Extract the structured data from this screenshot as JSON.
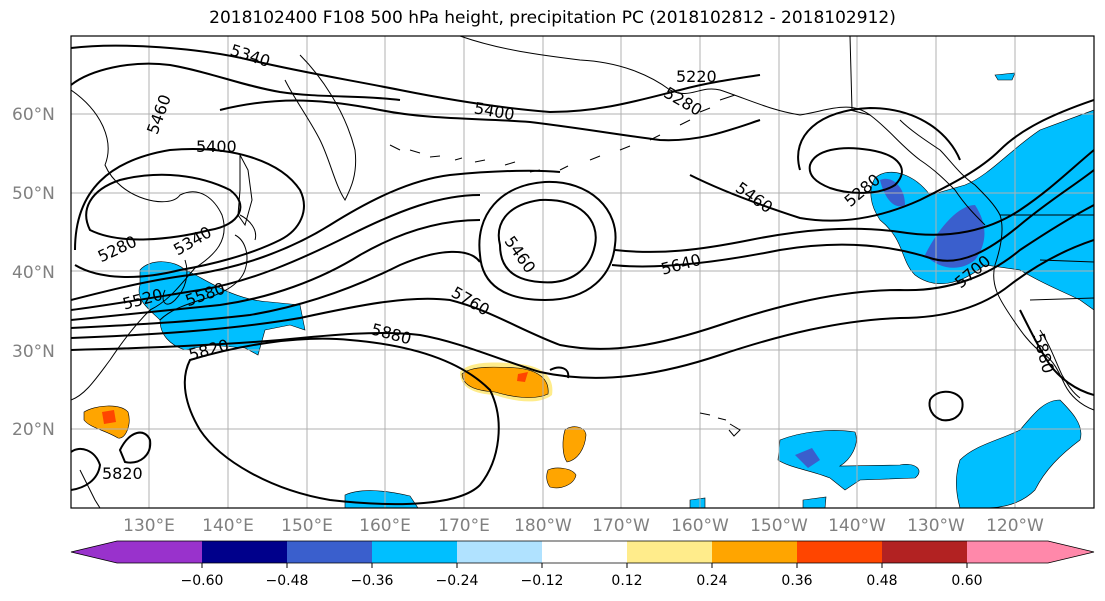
{
  "title": "2018102400 F108 500 hPa height, precipitation PC (2018102812 - 2018102912)",
  "lat_labels": [
    "60°N",
    "50°N",
    "40°N",
    "30°N",
    "20°N"
  ],
  "lon_labels": [
    "130°E",
    "140°E",
    "150°E",
    "160°E",
    "170°E",
    "180°W",
    "170°W",
    "160°W",
    "150°W",
    "140°W",
    "130°W",
    "120°W"
  ],
  "contour_labels": [
    "5340",
    "5220",
    "5280",
    "5460",
    "5400",
    "5400",
    "5280",
    "5340",
    "5460",
    "5460",
    "5640",
    "5520",
    "5580",
    "5760",
    "5820",
    "5880",
    "5280",
    "5700",
    "5880",
    "5820"
  ],
  "colorbar": {
    "ticks": [
      "−0.60",
      "−0.48",
      "−0.36",
      "−0.24",
      "−0.12",
      "0.12",
      "0.24",
      "0.36",
      "0.48",
      "0.60"
    ],
    "colors": [
      "#9932cc",
      "#00008b",
      "#3a5fcd",
      "#00bfff",
      "#b0e2ff",
      "#ffffff",
      "#ffec8b",
      "#ffa500",
      "#ff4500",
      "#b22222",
      "#ff88aa"
    ]
  },
  "fill_colors": {
    "neg_light": "#00bfff",
    "neg_mid": "#3a5fcd",
    "pos_yellow": "#ffec8b",
    "pos_orange": "#ffa500",
    "pos_red": "#ff4500"
  }
}
